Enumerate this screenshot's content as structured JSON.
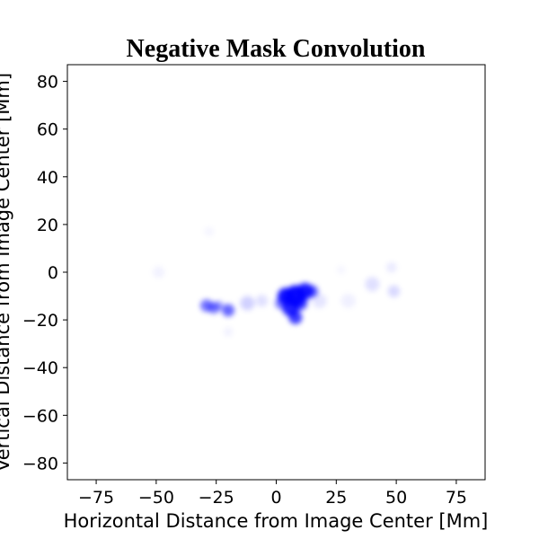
{
  "chart_data": {
    "type": "heatmap",
    "title": "Negative Mask Convolution",
    "xlabel": "Horizontal Distance from Image Center [Mm]",
    "ylabel": "Vertical Distance from Image Center [Mm]",
    "xlim": [
      -87,
      87
    ],
    "ylim": [
      -87,
      87
    ],
    "xticks": [
      -75,
      -50,
      -25,
      0,
      25,
      50,
      75
    ],
    "yticks": [
      -80,
      -60,
      -40,
      -20,
      0,
      20,
      40,
      60,
      80
    ],
    "xtick_labels": [
      "−75",
      "−50",
      "−25",
      "0",
      "25",
      "50",
      "75"
    ],
    "ytick_labels": [
      "−80",
      "−60",
      "−40",
      "−20",
      "0",
      "20",
      "40",
      "60",
      "80"
    ],
    "grid": false,
    "colormap": "white-to-blue",
    "colors": {
      "high": "#0000ff",
      "low": "#ffffff",
      "frame": "#000000"
    },
    "blobs": [
      {
        "x": 8,
        "y": -10,
        "r": 4.5,
        "intensity": 0.95
      },
      {
        "x": 4,
        "y": -10,
        "r": 3.5,
        "intensity": 0.9
      },
      {
        "x": 12,
        "y": -8,
        "r": 3.5,
        "intensity": 0.85
      },
      {
        "x": 15,
        "y": -8,
        "r": 2.5,
        "intensity": 0.6
      },
      {
        "x": 6,
        "y": -15,
        "r": 3.5,
        "intensity": 0.85
      },
      {
        "x": 8,
        "y": -19,
        "r": 2.8,
        "intensity": 0.75
      },
      {
        "x": 10,
        "y": -13,
        "r": 3.0,
        "intensity": 0.7
      },
      {
        "x": 2,
        "y": -13,
        "r": 2.5,
        "intensity": 0.5
      },
      {
        "x": -29,
        "y": -14,
        "r": 2.6,
        "intensity": 0.55
      },
      {
        "x": -26,
        "y": -15,
        "r": 2.4,
        "intensity": 0.5
      },
      {
        "x": -20,
        "y": -16,
        "r": 2.6,
        "intensity": 0.6
      },
      {
        "x": -24,
        "y": -14,
        "r": 2.0,
        "intensity": 0.35
      },
      {
        "x": -12,
        "y": -13,
        "r": 3.0,
        "intensity": 0.18
      },
      {
        "x": -6,
        "y": -12,
        "r": 2.5,
        "intensity": 0.12
      },
      {
        "x": 18,
        "y": -12,
        "r": 3.0,
        "intensity": 0.1
      },
      {
        "x": 30,
        "y": -12,
        "r": 3.0,
        "intensity": 0.06
      },
      {
        "x": 40,
        "y": -5,
        "r": 3.0,
        "intensity": 0.12
      },
      {
        "x": 49,
        "y": -8,
        "r": 2.5,
        "intensity": 0.15
      },
      {
        "x": 48,
        "y": 2,
        "r": 2.2,
        "intensity": 0.08
      },
      {
        "x": -49,
        "y": 0,
        "r": 2.5,
        "intensity": 0.05
      },
      {
        "x": -28,
        "y": 17,
        "r": 2.0,
        "intensity": 0.04
      },
      {
        "x": -20,
        "y": -25,
        "r": 2.0,
        "intensity": 0.05
      },
      {
        "x": 27,
        "y": 1,
        "r": 1.8,
        "intensity": 0.04
      }
    ]
  }
}
